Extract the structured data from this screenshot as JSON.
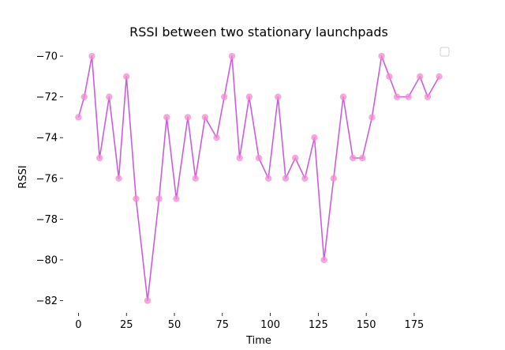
{
  "chart_data": {
    "type": "line",
    "title": "RSSI between two stationary launchpads",
    "xlabel": "Time",
    "ylabel": "RSSI",
    "xlim": [
      -8,
      196
    ],
    "ylim": [
      -82.6,
      -69.3
    ],
    "xticks": [
      0,
      25,
      50,
      75,
      100,
      125,
      150,
      175
    ],
    "yticks": [
      -70,
      -72,
      -74,
      -76,
      -78,
      -80,
      -82
    ],
    "xtick_labels": [
      "0",
      "25",
      "50",
      "75",
      "100",
      "125",
      "150",
      "175"
    ],
    "ytick_labels": [
      "−70",
      "−72",
      "−74",
      "−76",
      "−78",
      "−80",
      "−82"
    ],
    "grid": false,
    "legend": "upper-right, empty",
    "series": [
      {
        "line_color": "#c95fd8",
        "marker_color": "#f48ad0",
        "x": [
          0,
          3,
          7,
          11,
          16,
          21,
          25,
          30,
          36,
          42,
          46,
          51,
          57,
          61,
          66,
          72,
          76,
          80,
          84,
          89,
          94,
          99,
          104,
          108,
          113,
          118,
          123,
          128,
          133,
          138,
          143,
          148,
          153,
          158,
          162,
          166,
          172,
          178,
          182,
          188
        ],
        "y": [
          -73,
          -72,
          -70,
          -75,
          -72,
          -76,
          -71,
          -77,
          -82,
          -77,
          -73,
          -77,
          -73,
          -76,
          -73,
          -74,
          -72,
          -70,
          -75,
          -72,
          -75,
          -76,
          -72,
          -76,
          -75,
          -76,
          -74,
          -80,
          -76,
          -72,
          -75,
          -75,
          -73,
          -70,
          -71,
          -72,
          -72,
          -71,
          -72,
          -71
        ]
      }
    ]
  }
}
